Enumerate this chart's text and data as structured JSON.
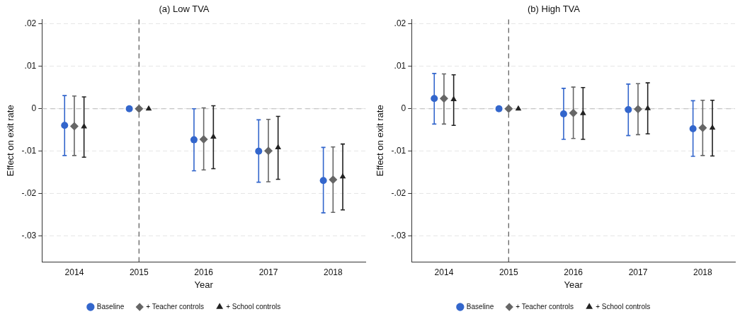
{
  "chart_data": [
    {
      "type": "scatter",
      "title": "(a) Low TVA",
      "xlabel": "Year",
      "ylabel": "Effect on exit rate",
      "xlim": [
        2013.5,
        2018.5
      ],
      "xticks": [
        2014,
        2015,
        2016,
        2017,
        2018
      ],
      "ylim": [
        -0.036,
        0.021
      ],
      "yticks": [
        {
          "value": -0.03,
          "label": "-.03"
        },
        {
          "value": -0.02,
          "label": "-.02"
        },
        {
          "value": -0.01,
          "label": "-.01"
        },
        {
          "value": 0,
          "label": "0"
        },
        {
          "value": 0.01,
          "label": ".01"
        },
        {
          "value": 0.02,
          "label": ".02"
        }
      ],
      "grid": "y",
      "legend": "bottom",
      "ref_lines": [
        {
          "axis": "x",
          "value": 2015,
          "color": "#555555",
          "line_style": "dashed"
        },
        {
          "axis": "y",
          "value": 0,
          "color": "#bbbbbb",
          "line_style": "dashed"
        }
      ],
      "series": [
        {
          "name": "Baseline",
          "color": "#3366cc",
          "marker": "circle",
          "x": [
            2013.85,
            2014.85,
            2015.85,
            2016.85,
            2017.85
          ],
          "values": [
            -0.0039,
            0,
            -0.0073,
            -0.01,
            -0.0169
          ],
          "errors": [
            [
              -0.011,
              0.0031
            ],
            null,
            [
              -0.0146,
              0
            ],
            [
              -0.0173,
              -0.0026
            ],
            [
              -0.0245,
              -0.0091
            ]
          ]
        },
        {
          "name": "+ Teacher controls",
          "color": "#666666",
          "marker": "diamond",
          "x": [
            2014,
            2015,
            2016,
            2017,
            2018
          ],
          "values": [
            -0.0041,
            0,
            -0.0072,
            -0.0099,
            -0.0167
          ],
          "errors": [
            [
              -0.011,
              0.003
            ],
            null,
            [
              -0.0144,
              0.0002
            ],
            [
              -0.0172,
              -0.0025
            ],
            [
              -0.0244,
              -0.009
            ]
          ]
        },
        {
          "name": "+ School controls",
          "color": "#222222",
          "marker": "triangle",
          "x": [
            2014.15,
            2015.15,
            2016.15,
            2017.15,
            2018.15
          ],
          "values": [
            -0.0042,
            0,
            -0.0066,
            -0.0091,
            -0.016
          ],
          "errors": [
            [
              -0.0114,
              0.0028
            ],
            null,
            [
              -0.0141,
              0.0007
            ],
            [
              -0.0166,
              -0.0018
            ],
            [
              -0.0238,
              -0.0083
            ]
          ]
        }
      ]
    },
    {
      "type": "scatter",
      "title": "(b) High TVA",
      "xlabel": "Year",
      "ylabel": "Effect on exit rate",
      "xlim": [
        2013.5,
        2018.5
      ],
      "xticks": [
        2014,
        2015,
        2016,
        2017,
        2018
      ],
      "ylim": [
        -0.036,
        0.021
      ],
      "yticks": [
        {
          "value": -0.03,
          "label": "-.03"
        },
        {
          "value": -0.02,
          "label": "-.02"
        },
        {
          "value": -0.01,
          "label": "-.01"
        },
        {
          "value": 0,
          "label": "0"
        },
        {
          "value": 0.01,
          "label": ".01"
        },
        {
          "value": 0.02,
          "label": ".02"
        }
      ],
      "grid": "y",
      "legend": "bottom",
      "ref_lines": [
        {
          "axis": "x",
          "value": 2015,
          "color": "#555555",
          "line_style": "dashed"
        },
        {
          "axis": "y",
          "value": 0,
          "color": "#bbbbbb",
          "line_style": "dashed"
        }
      ],
      "series": [
        {
          "name": "Baseline",
          "color": "#3366cc",
          "marker": "circle",
          "x": [
            2013.85,
            2014.85,
            2015.85,
            2016.85,
            2017.85
          ],
          "values": [
            0.0024,
            0,
            -0.0012,
            -0.0002,
            -0.0047
          ],
          "errors": [
            [
              -0.0036,
              0.0083
            ],
            null,
            [
              -0.0072,
              0.0048
            ],
            [
              -0.0063,
              0.0058
            ],
            [
              -0.0112,
              0.0019
            ]
          ]
        },
        {
          "name": "+ Teacher controls",
          "color": "#666666",
          "marker": "diamond",
          "x": [
            2014,
            2015,
            2016,
            2017,
            2018
          ],
          "values": [
            0.0024,
            0,
            -0.001,
            -0.0001,
            -0.0045
          ],
          "errors": [
            [
              -0.0036,
              0.0082
            ],
            null,
            [
              -0.007,
              0.0051
            ],
            [
              -0.0061,
              0.0059
            ],
            [
              -0.011,
              0.002
            ]
          ]
        },
        {
          "name": "+ School controls",
          "color": "#222222",
          "marker": "triangle",
          "x": [
            2014.15,
            2015.15,
            2016.15,
            2017.15,
            2018.15
          ],
          "values": [
            0.0022,
            0,
            -0.0011,
            0.0001,
            -0.0045
          ],
          "errors": [
            [
              -0.0039,
              0.008
            ],
            null,
            [
              -0.0072,
              0.005
            ],
            [
              -0.0059,
              0.0061
            ],
            [
              -0.0111,
              0.002
            ]
          ]
        }
      ]
    }
  ]
}
